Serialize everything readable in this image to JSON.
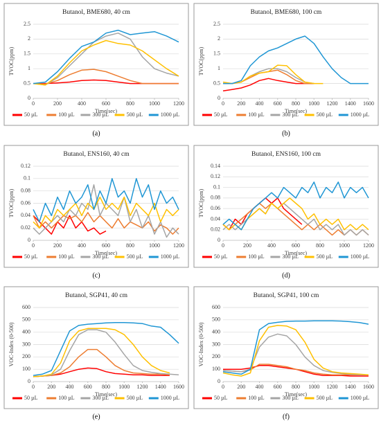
{
  "chart_data": [
    {
      "type": "line",
      "title": "Butanol, BME680, 40 cm",
      "caption": "(a)",
      "xlabel": "Time(sec)",
      "ylabel": "TVOC(ppm)",
      "x": [
        0,
        100,
        200,
        300,
        400,
        500,
        600,
        700,
        800,
        900,
        1000,
        1100,
        1200
      ],
      "xlim": [
        0,
        1200
      ],
      "xticks": [
        0,
        200,
        400,
        600,
        800,
        1000,
        1200
      ],
      "ylim": [
        0,
        2.5
      ],
      "yticks": [
        0,
        0.5,
        1,
        1.5,
        2,
        2.5
      ],
      "grid": true,
      "series": [
        {
          "name": "50 µL",
          "color": "#ff0000",
          "values": [
            0.5,
            0.5,
            0.52,
            0.55,
            0.6,
            0.62,
            0.6,
            0.55,
            0.5,
            0.5,
            0.5,
            0.5,
            0.5
          ]
        },
        {
          "name": "100 µL",
          "color": "#ed7d31",
          "values": [
            0.5,
            0.48,
            0.6,
            0.8,
            0.95,
            0.98,
            0.9,
            0.75,
            0.6,
            0.5,
            0.5,
            0.5,
            0.5
          ]
        },
        {
          "name": "300 µL",
          "color": "#a5a5a5",
          "values": [
            0.5,
            0.45,
            0.7,
            1.1,
            1.5,
            1.9,
            2.1,
            2.2,
            2.0,
            1.4,
            1.0,
            0.85,
            0.75
          ]
        },
        {
          "name": "500 µL",
          "color": "#ffc000",
          "values": [
            0.5,
            0.45,
            0.75,
            1.2,
            1.6,
            1.8,
            1.95,
            1.85,
            1.8,
            1.6,
            1.3,
            1.0,
            0.75
          ]
        },
        {
          "name": "1000 µL",
          "color": "#1f96d4",
          "values": [
            0.5,
            0.55,
            0.9,
            1.35,
            1.75,
            1.9,
            2.2,
            2.3,
            2.15,
            2.2,
            2.25,
            2.1,
            1.9
          ]
        }
      ]
    },
    {
      "type": "line",
      "title": "Butanol, BME680, 100 cm",
      "caption": "(b)",
      "xlabel": "Time(sec)",
      "ylabel": "TVOC(ppm)",
      "x": [
        0,
        100,
        200,
        300,
        400,
        500,
        600,
        700,
        800,
        900,
        1000,
        1100,
        1200,
        1300,
        1400,
        1500,
        1600
      ],
      "xlim": [
        0,
        1600
      ],
      "xticks": [
        0,
        200,
        400,
        600,
        800,
        1000,
        1200,
        1400,
        1600
      ],
      "ylim": [
        0,
        2.5
      ],
      "yticks": [
        0,
        0.5,
        1,
        1.5,
        2,
        2.5
      ],
      "grid": true,
      "series": [
        {
          "name": "50 µL",
          "color": "#ff0000",
          "values": [
            0.25,
            0.3,
            0.35,
            0.45,
            0.6,
            0.67,
            0.6,
            0.55,
            0.5,
            0.5,
            0.5,
            null,
            null,
            null,
            null,
            null,
            null
          ]
        },
        {
          "name": "100 µL",
          "color": "#ed7d31",
          "values": [
            0.5,
            0.5,
            0.55,
            0.7,
            0.85,
            0.9,
            0.95,
            0.8,
            0.6,
            0.5,
            0.5,
            null,
            null,
            null,
            null,
            null,
            null
          ]
        },
        {
          "name": "300 µL",
          "color": "#a5a5a5",
          "values": [
            0.5,
            0.5,
            0.55,
            0.75,
            0.9,
            1.0,
            1.0,
            0.9,
            0.7,
            0.55,
            0.5,
            null,
            null,
            null,
            null,
            null,
            null
          ]
        },
        {
          "name": "500 µL",
          "color": "#ffc000",
          "values": [
            0.55,
            0.5,
            0.55,
            0.75,
            0.85,
            0.9,
            1.12,
            1.1,
            0.8,
            0.55,
            0.5,
            0.5,
            null,
            null,
            null,
            null,
            null
          ]
        },
        {
          "name": "1000 µL",
          "color": "#1f96d4",
          "values": [
            0.5,
            0.5,
            0.6,
            1.1,
            1.4,
            1.6,
            1.7,
            1.85,
            2.0,
            2.1,
            1.85,
            1.4,
            1.0,
            0.7,
            0.5,
            0.5,
            0.5
          ]
        }
      ]
    },
    {
      "type": "line",
      "title": "Butanol, ENS160, 40 cm",
      "caption": "(c)",
      "xlabel": "Time(sec)",
      "ylabel": "TVOC(ppm)",
      "x": [
        0,
        50,
        100,
        150,
        200,
        250,
        300,
        350,
        400,
        450,
        500,
        550,
        600,
        650,
        700,
        750,
        800,
        850,
        900,
        950,
        1000,
        1050,
        1100,
        1150,
        1200
      ],
      "xlim": [
        0,
        1200
      ],
      "xticks": [
        0,
        200,
        400,
        600,
        800,
        1000,
        1200
      ],
      "ylim": [
        0,
        0.12
      ],
      "yticks": [
        0,
        0.02,
        0.04,
        0.06,
        0.08,
        0.1,
        0.12
      ],
      "grid": true,
      "series": [
        {
          "name": "50 µL",
          "color": "#ff0000",
          "values": [
            0.04,
            0.03,
            0.02,
            0.01,
            0.03,
            0.02,
            0.04,
            0.02,
            0.03,
            0.015,
            0.02,
            0.01,
            0.015,
            null,
            null,
            null,
            null,
            null,
            null,
            null,
            null,
            null,
            null,
            null,
            null
          ]
        },
        {
          "name": "100 µL",
          "color": "#ed7d31",
          "values": [
            0.04,
            0.02,
            0.03,
            0.02,
            0.03,
            0.04,
            0.035,
            0.04,
            0.03,
            0.045,
            0.03,
            0.04,
            0.03,
            0.02,
            0.035,
            0.02,
            0.03,
            0.025,
            0.02,
            0.03,
            0.015,
            0.025,
            0.02,
            0.01,
            0.02
          ]
        },
        {
          "name": "300 µL",
          "color": "#a5a5a5",
          "values": [
            0.02,
            0.01,
            0.02,
            0.03,
            0.04,
            0.03,
            0.05,
            0.04,
            0.06,
            0.05,
            0.09,
            0.04,
            0.06,
            0.05,
            0.04,
            0.07,
            0.03,
            0.05,
            0.02,
            0.04,
            0.01,
            0.03,
            0.005,
            0.02,
            0.01
          ]
        },
        {
          "name": "500 µL",
          "color": "#ffc000",
          "values": [
            0.03,
            0.02,
            0.04,
            0.03,
            0.05,
            0.04,
            0.05,
            0.06,
            0.04,
            0.06,
            0.05,
            0.07,
            0.05,
            0.06,
            0.05,
            0.07,
            0.04,
            0.06,
            0.05,
            0.04,
            0.06,
            0.03,
            0.05,
            0.04,
            0.05
          ]
        },
        {
          "name": "1000 µL",
          "color": "#1f96d4",
          "values": [
            0.05,
            0.03,
            0.06,
            0.04,
            0.07,
            0.05,
            0.08,
            0.06,
            0.07,
            0.09,
            0.05,
            0.08,
            0.06,
            0.1,
            0.07,
            0.08,
            0.06,
            0.1,
            0.07,
            0.09,
            0.05,
            0.08,
            0.06,
            0.07,
            0.05
          ]
        }
      ]
    },
    {
      "type": "line",
      "title": "Butanol, ENS160, 100 cm",
      "caption": "(d)",
      "xlabel": "Time(sec)",
      "ylabel": "TVOC(ppm)",
      "x": [
        0,
        50,
        100,
        150,
        200,
        250,
        300,
        350,
        400,
        450,
        500,
        550,
        600,
        650,
        700,
        750,
        800,
        850,
        900,
        950,
        1000,
        1050,
        1100,
        1150,
        1200
      ],
      "xlim": [
        0,
        1200
      ],
      "xticks": [
        0,
        200,
        400,
        600,
        800,
        1000,
        1200
      ],
      "ylim": [
        0,
        0.14
      ],
      "yticks": [
        0,
        0.02,
        0.04,
        0.06,
        0.08,
        0.1,
        0.12,
        0.14
      ],
      "grid": true,
      "series": [
        {
          "name": "50 µL",
          "color": "#ff0000",
          "values": [
            0.03,
            0.02,
            0.04,
            0.03,
            0.05,
            0.06,
            0.07,
            0.08,
            0.07,
            0.08,
            0.06,
            0.05,
            0.04,
            0.03,
            null,
            null,
            null,
            null,
            null,
            null,
            null,
            null,
            null,
            null,
            null
          ]
        },
        {
          "name": "100 µL",
          "color": "#ed7d31",
          "values": [
            0.03,
            0.02,
            0.03,
            0.04,
            0.05,
            0.06,
            0.07,
            0.06,
            0.07,
            0.06,
            0.05,
            0.04,
            0.03,
            0.02,
            0.03,
            0.02,
            0.03,
            0.02,
            0.01,
            0.02,
            0.01,
            0.02,
            0.01,
            0.02,
            0.01
          ]
        },
        {
          "name": "300 µL",
          "color": "#a5a5a5",
          "values": [
            0.02,
            0.03,
            0.02,
            0.03,
            0.04,
            0.05,
            0.06,
            0.05,
            0.07,
            0.06,
            0.07,
            0.06,
            0.05,
            0.04,
            0.03,
            0.04,
            0.02,
            0.03,
            0.02,
            0.03,
            0.01,
            0.02,
            0.01,
            0.02,
            0.01
          ]
        },
        {
          "name": "500 µL",
          "color": "#ffc000",
          "values": [
            0.03,
            0.02,
            0.03,
            0.02,
            0.04,
            0.05,
            0.06,
            0.05,
            0.07,
            0.06,
            0.07,
            0.08,
            0.07,
            0.06,
            0.04,
            0.05,
            0.03,
            0.04,
            0.03,
            0.04,
            0.02,
            0.03,
            0.02,
            0.03,
            0.02
          ]
        },
        {
          "name": "1000 µL",
          "color": "#1f96d4",
          "values": [
            0.03,
            0.04,
            0.03,
            0.02,
            0.04,
            0.06,
            0.07,
            0.08,
            0.09,
            0.08,
            0.1,
            0.09,
            0.08,
            0.1,
            0.09,
            0.11,
            0.08,
            0.1,
            0.09,
            0.11,
            0.08,
            0.1,
            0.09,
            0.1,
            0.08
          ]
        }
      ]
    },
    {
      "type": "line",
      "title": "Butanol, SGP41, 40 cm",
      "caption": "(e)",
      "xlabel": "Time(sec)",
      "ylabel": "VOC-Index (0-500)",
      "x": [
        0,
        100,
        200,
        300,
        400,
        500,
        600,
        700,
        800,
        900,
        1000,
        1100,
        1200,
        1300,
        1400,
        1500,
        1600
      ],
      "xlim": [
        0,
        1600
      ],
      "xticks": [
        0,
        200,
        400,
        600,
        800,
        1000,
        1200,
        1400,
        1600
      ],
      "ylim": [
        0,
        600
      ],
      "yticks": [
        0,
        100,
        200,
        300,
        400,
        500,
        600
      ],
      "grid": true,
      "series": [
        {
          "name": "50 µL",
          "color": "#ff0000",
          "values": [
            40,
            45,
            50,
            60,
            80,
            100,
            110,
            105,
            80,
            65,
            60,
            55,
            55,
            50,
            50,
            50,
            null
          ]
        },
        {
          "name": "100 µL",
          "color": "#ed7d31",
          "values": [
            40,
            45,
            50,
            70,
            120,
            200,
            260,
            260,
            200,
            130,
            90,
            70,
            65,
            60,
            60,
            55,
            null
          ]
        },
        {
          "name": "300 µL",
          "color": "#a5a5a5",
          "values": [
            40,
            45,
            55,
            100,
            250,
            380,
            420,
            420,
            400,
            320,
            220,
            130,
            90,
            75,
            65,
            60,
            55
          ]
        },
        {
          "name": "500 µL",
          "color": "#ffc000",
          "values": [
            40,
            45,
            60,
            150,
            330,
            410,
            430,
            430,
            430,
            420,
            380,
            300,
            200,
            130,
            90,
            70,
            null
          ]
        },
        {
          "name": "1000 µL",
          "color": "#1f96d4",
          "values": [
            50,
            60,
            90,
            250,
            410,
            455,
            465,
            470,
            475,
            478,
            478,
            475,
            470,
            450,
            440,
            380,
            310
          ]
        }
      ]
    },
    {
      "type": "line",
      "title": "Butanol, SGP41, 100 cm",
      "caption": "(f)",
      "xlabel": "Time(sec)",
      "ylabel": "VOC-Index (0-500)",
      "x": [
        0,
        100,
        200,
        300,
        400,
        500,
        600,
        700,
        800,
        900,
        1000,
        1100,
        1200,
        1300,
        1400,
        1500,
        1600
      ],
      "xlim": [
        0,
        1600
      ],
      "xticks": [
        0,
        200,
        400,
        600,
        800,
        1000,
        1200,
        1400,
        1600
      ],
      "ylim": [
        0,
        600
      ],
      "yticks": [
        0,
        100,
        200,
        300,
        400,
        500,
        600
      ],
      "grid": true,
      "series": [
        {
          "name": "50 µL",
          "color": "#ff0000",
          "values": [
            100,
            100,
            100,
            110,
            130,
            130,
            120,
            110,
            100,
            80,
            60,
            50,
            50,
            50,
            45,
            45,
            45
          ]
        },
        {
          "name": "100 µL",
          "color": "#ed7d31",
          "values": [
            90,
            85,
            80,
            95,
            140,
            140,
            130,
            120,
            100,
            90,
            70,
            60,
            55,
            55,
            55,
            55,
            55
          ]
        },
        {
          "name": "300 µL",
          "color": "#a5a5a5",
          "values": [
            90,
            85,
            80,
            100,
            280,
            360,
            385,
            370,
            300,
            200,
            130,
            90,
            75,
            65,
            60,
            55,
            55
          ]
        },
        {
          "name": "500 µL",
          "color": "#ffc000",
          "values": [
            70,
            55,
            45,
            70,
            330,
            440,
            455,
            450,
            420,
            320,
            180,
            110,
            80,
            70,
            65,
            60,
            55
          ]
        },
        {
          "name": "1000 µL",
          "color": "#1f96d4",
          "values": [
            80,
            70,
            60,
            100,
            420,
            470,
            480,
            488,
            490,
            490,
            492,
            492,
            492,
            490,
            485,
            478,
            465
          ]
        }
      ]
    }
  ]
}
